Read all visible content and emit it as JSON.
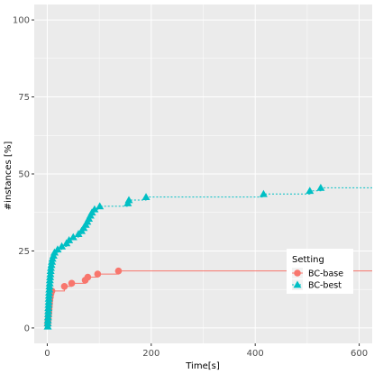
{
  "chart_data": {
    "type": "line",
    "title": "",
    "xlabel": "Time[s]",
    "ylabel": "#instances [%]",
    "xlim": [
      -25,
      625
    ],
    "ylim": [
      -5,
      105
    ],
    "x_ticks": [
      0,
      200,
      400,
      600
    ],
    "y_ticks": [
      0,
      25,
      50,
      75,
      100
    ],
    "grid": true,
    "legend_title": "Setting",
    "legend_position": "right",
    "background": "#ebebeb",
    "series": [
      {
        "name": "BC-base",
        "color": "#f8766d",
        "marker": "circle",
        "line_style": "solid",
        "step_end_x": 625,
        "points": [
          [
            1,
            1
          ],
          [
            1.5,
            2
          ],
          [
            2,
            3
          ],
          [
            2.5,
            4
          ],
          [
            3,
            5
          ],
          [
            3.5,
            6
          ],
          [
            4,
            7
          ],
          [
            4.5,
            8
          ],
          [
            5,
            9
          ],
          [
            6,
            10
          ],
          [
            7,
            11
          ],
          [
            9,
            12
          ],
          [
            33,
            13.5
          ],
          [
            47,
            14.5
          ],
          [
            73,
            15.5
          ],
          [
            78,
            16.5
          ],
          [
            97,
            17.5
          ],
          [
            137,
            18.5
          ]
        ]
      },
      {
        "name": "BC-best",
        "color": "#00bfc4",
        "marker": "triangle",
        "line_style": "dotted",
        "step_end_x": 625,
        "points": [
          [
            1,
            0.5
          ],
          [
            1,
            1.5
          ],
          [
            1.2,
            2.5
          ],
          [
            1.5,
            3.5
          ],
          [
            1.8,
            4.5
          ],
          [
            2,
            5.5
          ],
          [
            2.2,
            6.5
          ],
          [
            2.5,
            7.5
          ],
          [
            2.8,
            8.5
          ],
          [
            3,
            9.5
          ],
          [
            3.3,
            10.5
          ],
          [
            3.6,
            11.5
          ],
          [
            4,
            12.5
          ],
          [
            4.3,
            13.5
          ],
          [
            4.7,
            14.5
          ],
          [
            5,
            15.5
          ],
          [
            5.5,
            16.5
          ],
          [
            6,
            17.5
          ],
          [
            6.5,
            18.5
          ],
          [
            7,
            19.5
          ],
          [
            8,
            20.5
          ],
          [
            9,
            21.5
          ],
          [
            10,
            22.5
          ],
          [
            12,
            23.5
          ],
          [
            14,
            24.5
          ],
          [
            20,
            25.5
          ],
          [
            28,
            26.5
          ],
          [
            37,
            27.5
          ],
          [
            42,
            28.5
          ],
          [
            50,
            29.5
          ],
          [
            60,
            30.5
          ],
          [
            66,
            31.5
          ],
          [
            70,
            32.5
          ],
          [
            74,
            33.5
          ],
          [
            77,
            34.5
          ],
          [
            80,
            35.5
          ],
          [
            83,
            36.5
          ],
          [
            86,
            37.5
          ],
          [
            91,
            38.5
          ],
          [
            101,
            39.5
          ],
          [
            155,
            40.5
          ],
          [
            157,
            41.5
          ],
          [
            190,
            42.5
          ],
          [
            416,
            43.5
          ],
          [
            505,
            44.5
          ],
          [
            526,
            45.5
          ]
        ]
      }
    ]
  }
}
